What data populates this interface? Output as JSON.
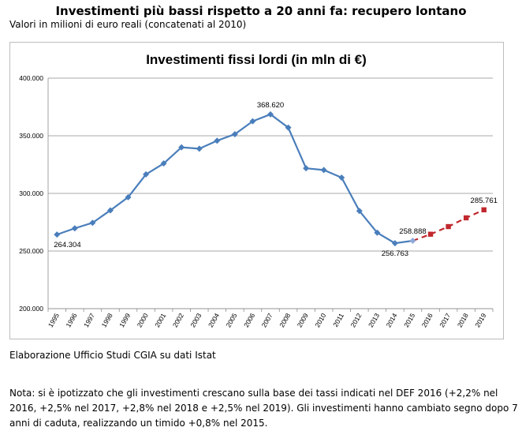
{
  "header": {
    "title": "Investimenti più bassi rispetto a 20 anni fa: recupero lontano",
    "subtitle": "Valori in milioni di euro reali (concatenati al 2010)"
  },
  "footer": {
    "source": "Elaborazione Ufficio Studi CGIA su dati Istat",
    "note": "Nota: si è ipotizzato che gli investimenti crescano sulla base dei tassi indicati nel DEF 2016 (+2,2% nel 2016, +2,5% nel 2017, +2,8% nel 2018 e +2,5% nel 2019). Gli investimenti hanno cambiato segno dopo 7 anni di caduta, realizzando un timido +0,8% nel 2015."
  },
  "chart_data": {
    "type": "line",
    "title": "Investimenti fissi lordi (in mln di €)",
    "xlabel": "",
    "ylabel": "",
    "ylim": [
      200000,
      400000
    ],
    "yticks": [
      "200.000",
      "250.000",
      "300.000",
      "350.000",
      "400.000"
    ],
    "ytick_values": [
      200000,
      250000,
      300000,
      350000,
      400000
    ],
    "grid": true,
    "categories": [
      "1995",
      "1996",
      "1997",
      "1998",
      "1999",
      "2000",
      "2001",
      "2002",
      "2003",
      "2004",
      "2005",
      "2006",
      "2007",
      "2008",
      "2009",
      "2010",
      "2011",
      "2012",
      "2013",
      "2014",
      "2015",
      "2016",
      "2017",
      "2018",
      "2019"
    ],
    "series": [
      {
        "color": "#4a7ebb",
        "marker": "diamond",
        "style": "solid",
        "x": [
          "1995",
          "1996",
          "1997",
          "1998",
          "1999",
          "2000",
          "2001",
          "2002",
          "2003",
          "2004",
          "2005",
          "2006",
          "2007",
          "2008",
          "2009",
          "2010",
          "2011",
          "2012",
          "2013",
          "2014",
          "2015"
        ],
        "values": [
          264304,
          269700,
          274500,
          285300,
          296700,
          316500,
          326000,
          340000,
          338800,
          345700,
          351400,
          362600,
          368620,
          357100,
          321800,
          320300,
          313700,
          284800,
          265900,
          256763,
          258888
        ]
      },
      {
        "color": "#c0282d",
        "marker": "square",
        "style": "dashed",
        "x": [
          "2015",
          "2016",
          "2017",
          "2018",
          "2019"
        ],
        "values": [
          258888,
          264583,
          271198,
          278791,
          285761
        ]
      }
    ],
    "data_labels": [
      {
        "x": "1995",
        "text": "264.304",
        "position": "below-right"
      },
      {
        "x": "2007",
        "text": "368.620",
        "position": "above"
      },
      {
        "x": "2014",
        "text": "256.763",
        "position": "below"
      },
      {
        "x": "2015",
        "text": "258.888",
        "position": "above"
      },
      {
        "x": "2019",
        "text": "285.761",
        "position": "above"
      }
    ]
  }
}
